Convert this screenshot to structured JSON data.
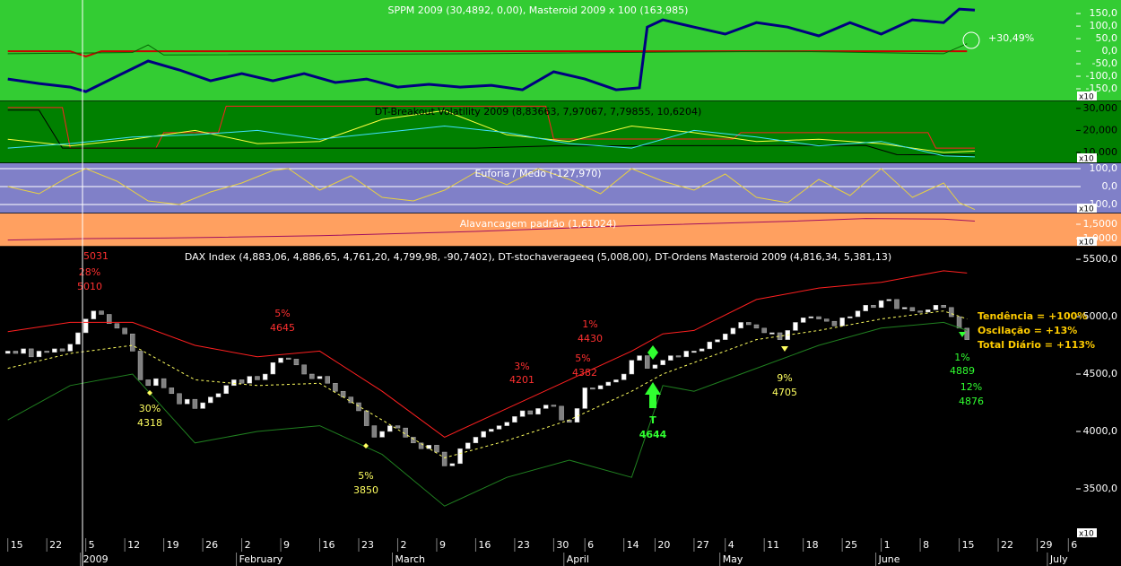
{
  "chart_data": [
    {
      "type": "line",
      "title": "SPPM 2009 (30,4892, 0,00), Masteroid 2009 x 100 (163,985)",
      "background": "#33cc33",
      "text_color": "#ffffff",
      "scale_note": "x10",
      "ylim": [
        -200,
        204
      ],
      "yticks": [
        {
          "value": 150,
          "label": "150,0"
        },
        {
          "value": 100,
          "label": "100,0"
        },
        {
          "value": 50,
          "label": "50,0"
        },
        {
          "value": 0,
          "label": "0,0"
        },
        {
          "value": -50,
          "label": "-50,0"
        },
        {
          "value": -100,
          "label": "-100,0"
        },
        {
          "value": -150,
          "label": "-150,0"
        }
      ],
      "grid": false,
      "annotations": [
        "+30,49%"
      ],
      "series": [
        {
          "color": "#cc0000",
          "line_width": 2,
          "x": [
            0,
            8,
            10,
            12,
            123
          ],
          "values": [
            0,
            0,
            -21,
            0,
            0
          ]
        },
        {
          "color": "#006600",
          "line_width": 1,
          "x": [
            0,
            16,
            18,
            20,
            60,
            100,
            120,
            123
          ],
          "values": [
            -10,
            -5,
            25,
            -15,
            -10,
            0,
            -10,
            30
          ]
        },
        {
          "color": "#000080",
          "line_width": 3,
          "x": [
            0,
            4,
            8,
            10,
            14,
            18,
            22,
            26,
            30,
            34,
            38,
            42,
            46,
            50,
            54,
            58,
            62,
            66,
            70,
            74,
            78,
            81,
            82,
            84,
            88,
            92,
            96,
            100,
            104,
            108,
            112,
            116,
            120,
            122,
            124
          ],
          "values": [
            -111,
            -129,
            -143,
            -161,
            -100,
            -39,
            -75,
            -118,
            -89,
            -118,
            -89,
            -125,
            -111,
            -143,
            -132,
            -143,
            -136,
            -154,
            -82,
            -111,
            -154,
            -146,
            96,
            125,
            96,
            68,
            114,
            96,
            61,
            114,
            68,
            125,
            114,
            168,
            164
          ]
        }
      ]
    },
    {
      "type": "line",
      "title": "DT-Breakout Volatility 2009 (8,83663, 7,97067, 7,79855, 10,6204)",
      "background": "#008000",
      "text_color": "#000000",
      "scale_note": "x10",
      "ylim": [
        5100,
        33200
      ],
      "yticks": [
        {
          "value": 30000,
          "label": "30,000"
        },
        {
          "value": 20000,
          "label": "20,000"
        },
        {
          "value": 10000,
          "label": "10,000"
        }
      ],
      "grid": false,
      "series": [
        {
          "color": "#ff2020",
          "line_width": 1,
          "x": [
            0,
            7,
            8,
            19,
            20,
            27,
            28,
            69,
            70,
            93,
            94,
            118,
            119,
            124
          ],
          "values": [
            30400,
            30400,
            12000,
            12000,
            19000,
            19000,
            31000,
            31000,
            16100,
            16100,
            19000,
            19000,
            12000,
            12000
          ]
        },
        {
          "color": "#000000",
          "line_width": 1,
          "x": [
            0,
            4,
            7,
            60,
            70,
            110,
            114,
            124
          ],
          "values": [
            29200,
            29200,
            12000,
            12000,
            13000,
            13200,
            9000,
            8800
          ]
        },
        {
          "color": "#ffff40",
          "line_width": 1,
          "x": [
            0,
            8,
            16,
            24,
            32,
            40,
            48,
            56,
            64,
            72,
            80,
            88,
            96,
            104,
            112,
            120,
            124
          ],
          "values": [
            16000,
            13000,
            16000,
            20000,
            14000,
            15000,
            25000,
            29000,
            18000,
            15000,
            22000,
            19000,
            15000,
            16000,
            14000,
            10000,
            10600
          ]
        },
        {
          "color": "#40e0ff",
          "line_width": 1,
          "x": [
            0,
            8,
            16,
            24,
            32,
            40,
            48,
            56,
            64,
            72,
            80,
            88,
            96,
            104,
            112,
            120,
            124
          ],
          "values": [
            12000,
            14000,
            17000,
            18000,
            20000,
            16000,
            19000,
            22000,
            19000,
            14000,
            12000,
            20000,
            17000,
            13000,
            15000,
            8500,
            8000
          ]
        }
      ]
    },
    {
      "type": "line",
      "title": "Euforia / Medo (-127,970)",
      "background": "#8080c8",
      "text_color": "#ffffff",
      "scale_note": "x10",
      "ylim": [
        -150,
        130
      ],
      "yticks": [
        {
          "value": 100,
          "label": "100,0"
        },
        {
          "value": 0,
          "label": "0,0"
        },
        {
          "value": -100,
          "label": "-100,0"
        }
      ],
      "grid": true,
      "series": [
        {
          "color": "#e8d040",
          "line_width": 1,
          "x": [
            0,
            4,
            8,
            10,
            14,
            18,
            22,
            26,
            30,
            34,
            36,
            40,
            44,
            48,
            52,
            56,
            60,
            64,
            68,
            72,
            76,
            80,
            84,
            88,
            92,
            96,
            100,
            104,
            108,
            112,
            116,
            120,
            122,
            124
          ],
          "values": [
            0,
            -40,
            60,
            100,
            30,
            -80,
            -100,
            -30,
            20,
            90,
            100,
            -20,
            60,
            -60,
            -80,
            -20,
            80,
            10,
            100,
            40,
            -40,
            100,
            30,
            -20,
            70,
            -60,
            -90,
            40,
            -50,
            100,
            -60,
            20,
            -90,
            -128
          ]
        }
      ]
    },
    {
      "type": "line",
      "title": "Alavancagem padrão (1,61024)",
      "background": "#ffa060",
      "text_color": "#ffffff",
      "scale_note": "x10",
      "ylim": [
        0.72,
        1.875
      ],
      "yticks": [
        {
          "value": 1.5,
          "label": "1,5000"
        },
        {
          "value": 1,
          "label": "1,0000"
        }
      ],
      "grid": false,
      "series": [
        {
          "color": "#a01060",
          "line_width": 1,
          "x": [
            0,
            10,
            20,
            40,
            60,
            80,
            100,
            110,
            120,
            124
          ],
          "values": [
            0.95,
            1.0,
            1.02,
            1.1,
            1.25,
            1.45,
            1.6,
            1.7,
            1.68,
            1.61
          ]
        }
      ]
    },
    {
      "type": "candlestick",
      "title": "DAX Index (4,883,06, 4,886,65, 4,761,20, 4,799,98, -90,7402), DT-stochaverageeq (5,008,00), DT-Ordens Masteroid 2009 (4,816,34, 5,381,13)",
      "background": "#000000",
      "text_color": "#ffffff",
      "scale_note": "x10",
      "ylim": [
        3070,
        5610
      ],
      "yticks": [
        {
          "value": 5500,
          "label": "5500,0"
        },
        {
          "value": 5000,
          "label": "5000,0"
        },
        {
          "value": 4500,
          "label": "4500,0"
        },
        {
          "value": 4000,
          "label": "4000,0"
        },
        {
          "value": 3500,
          "label": "3500,0"
        }
      ],
      "grid": false,
      "xlim": [
        -1,
        137
      ],
      "xticks": [
        {
          "value": 0,
          "label": "15"
        },
        {
          "value": 5,
          "label": "22"
        },
        {
          "value": 10,
          "label": "5"
        },
        {
          "value": 15,
          "label": "12"
        },
        {
          "value": 20,
          "label": "19"
        },
        {
          "value": 25,
          "label": "26"
        },
        {
          "value": 30,
          "label": "2"
        },
        {
          "value": 35,
          "label": "9"
        },
        {
          "value": 40,
          "label": "16"
        },
        {
          "value": 45,
          "label": "23"
        },
        {
          "value": 50,
          "label": "2"
        },
        {
          "value": 55,
          "label": "9"
        },
        {
          "value": 60,
          "label": "16"
        },
        {
          "value": 65,
          "label": "23"
        },
        {
          "value": 70,
          "label": "30"
        },
        {
          "value": 74,
          "label": "6"
        },
        {
          "value": 79,
          "label": "14"
        },
        {
          "value": 83,
          "label": "20"
        },
        {
          "value": 88,
          "label": "27"
        },
        {
          "value": 92,
          "label": "4"
        },
        {
          "value": 97,
          "label": "11"
        },
        {
          "value": 102,
          "label": "18"
        },
        {
          "value": 107,
          "label": "25"
        },
        {
          "value": 112,
          "label": "1"
        },
        {
          "value": 117,
          "label": "8"
        },
        {
          "value": 122,
          "label": "15"
        },
        {
          "value": 127,
          "label": "22"
        },
        {
          "value": 132,
          "label": "29"
        },
        {
          "value": 136,
          "label": "6"
        }
      ],
      "month_labels": [
        {
          "value": 10,
          "label": "2009"
        },
        {
          "value": 30,
          "label": "February"
        },
        {
          "value": 50,
          "label": "March"
        },
        {
          "value": 72,
          "label": "April"
        },
        {
          "value": 92,
          "label": "May"
        },
        {
          "value": 112,
          "label": "June"
        },
        {
          "value": 134,
          "label": "July"
        }
      ],
      "up_color": "#ffffff",
      "down_color": "#808080",
      "x": [
        0,
        1,
        2,
        3,
        4,
        5,
        6,
        7,
        8,
        9,
        10,
        11,
        12,
        13,
        14,
        15,
        16,
        17,
        18,
        19,
        20,
        21,
        22,
        23,
        24,
        25,
        26,
        27,
        28,
        29,
        30,
        31,
        32,
        33,
        34,
        35,
        36,
        37,
        38,
        39,
        40,
        41,
        42,
        43,
        44,
        45,
        46,
        47,
        48,
        49,
        50,
        51,
        52,
        53,
        54,
        55,
        56,
        57,
        58,
        59,
        60,
        61,
        62,
        63,
        64,
        65,
        66,
        67,
        68,
        69,
        70,
        71,
        72,
        73,
        74,
        75,
        76,
        77,
        78,
        79,
        80,
        81,
        82,
        83,
        84,
        85,
        86,
        87,
        88,
        89,
        90,
        91,
        92,
        93,
        94,
        95,
        96,
        97,
        98,
        99,
        100,
        101,
        102,
        103,
        104,
        105,
        106,
        107,
        108,
        109,
        110,
        111,
        112,
        113,
        114,
        115,
        116,
        117,
        118,
        119,
        120,
        121,
        122,
        123
      ],
      "open": [
        4680,
        4700,
        4680,
        4720,
        4650,
        4700,
        4690,
        4720,
        4700,
        4760,
        4860,
        4980,
        5050,
        5020,
        4940,
        4900,
        4850,
        4700,
        4450,
        4400,
        4460,
        4380,
        4330,
        4240,
        4280,
        4200,
        4250,
        4300,
        4330,
        4400,
        4450,
        4420,
        4480,
        4450,
        4500,
        4600,
        4640,
        4630,
        4580,
        4500,
        4460,
        4480,
        4420,
        4350,
        4300,
        4250,
        4180,
        4050,
        3950,
        4000,
        4050,
        4030,
        3950,
        3900,
        3850,
        3880,
        3820,
        3700,
        3720,
        3850,
        3900,
        3950,
        4000,
        4020,
        4050,
        4080,
        4130,
        4180,
        4150,
        4200,
        4230,
        4220,
        4100,
        4080,
        4200,
        4380,
        4370,
        4400,
        4430,
        4450,
        4500,
        4620,
        4660,
        4550,
        4580,
        4620,
        4660,
        4650,
        4700,
        4700,
        4720,
        4780,
        4800,
        4850,
        4900,
        4950,
        4930,
        4900,
        4860,
        4860,
        4800,
        4880,
        4950,
        4990,
        5000,
        4980,
        4960,
        4920,
        4990,
        5000,
        5050,
        5100,
        5080,
        5140,
        5150,
        5070,
        5080,
        5050,
        5040,
        5060,
        5100,
        5080,
        5000,
        4900
      ],
      "close": [
        4700,
        4680,
        4720,
        4650,
        4700,
        4690,
        4720,
        4700,
        4760,
        4860,
        4980,
        5050,
        5020,
        4940,
        4900,
        4850,
        4700,
        4450,
        4400,
        4460,
        4380,
        4330,
        4240,
        4280,
        4200,
        4250,
        4300,
        4330,
        4400,
        4450,
        4420,
        4480,
        4450,
        4500,
        4600,
        4640,
        4630,
        4580,
        4500,
        4460,
        4480,
        4420,
        4350,
        4300,
        4250,
        4180,
        4050,
        3950,
        4000,
        4050,
        4030,
        3950,
        3900,
        3850,
        3880,
        3820,
        3700,
        3720,
        3850,
        3900,
        3950,
        4000,
        4020,
        4050,
        4080,
        4130,
        4180,
        4150,
        4200,
        4230,
        4220,
        4100,
        4080,
        4200,
        4380,
        4370,
        4400,
        4430,
        4450,
        4500,
        4620,
        4660,
        4550,
        4580,
        4620,
        4660,
        4650,
        4700,
        4700,
        4720,
        4780,
        4800,
        4850,
        4900,
        4950,
        4930,
        4900,
        4860,
        4860,
        4800,
        4880,
        4950,
        4990,
        5000,
        4980,
        4960,
        4920,
        4990,
        5000,
        5050,
        5100,
        5080,
        5140,
        5150,
        5070,
        5080,
        5050,
        5040,
        5060,
        5100,
        5080,
        5000,
        4900,
        4800
      ],
      "series": [
        {
          "color": "#ff2020",
          "line_width": 1,
          "x": [
            0,
            8,
            16,
            24,
            32,
            40,
            48,
            56,
            64,
            72,
            80,
            84,
            88,
            96,
            104,
            112,
            120,
            123
          ],
          "values": [
            4870,
            4950,
            4950,
            4750,
            4650,
            4700,
            4350,
            3950,
            4200,
            4450,
            4700,
            4850,
            4880,
            5150,
            5250,
            5300,
            5400,
            5380
          ]
        },
        {
          "color": "#208020",
          "line_width": 1,
          "x": [
            0,
            8,
            16,
            24,
            32,
            40,
            48,
            56,
            64,
            72,
            80,
            84,
            88,
            96,
            104,
            112,
            120,
            123
          ],
          "values": [
            4100,
            4400,
            4500,
            3900,
            4000,
            4050,
            3800,
            3350,
            3600,
            3750,
            3600,
            4400,
            4350,
            4550,
            4750,
            4900,
            4950,
            4880
          ]
        },
        {
          "color": "#ffff60",
          "line_width": 1,
          "dashed": true,
          "x": [
            0,
            8,
            16,
            24,
            32,
            40,
            48,
            56,
            64,
            72,
            80,
            84,
            88,
            96,
            104,
            112,
            120,
            123
          ],
          "values": [
            4550,
            4680,
            4750,
            4450,
            4400,
            4420,
            4100,
            3770,
            3920,
            4100,
            4350,
            4500,
            4600,
            4800,
            4880,
            4980,
            5050,
            4980
          ]
        }
      ],
      "annotations": [
        "5031",
        "28%",
        "5010",
        "30%",
        "4318",
        "5%",
        "4645",
        "5%",
        "3850",
        "3%",
        "4201",
        "5%",
        "4382",
        "1%",
        "4430",
        "T",
        "4644",
        "9%",
        "4705",
        "1%",
        "4889",
        "12%",
        "4876",
        "Tendência = +100%",
        "Oscilação = +13%",
        "Total Diário = +113%"
      ]
    }
  ]
}
